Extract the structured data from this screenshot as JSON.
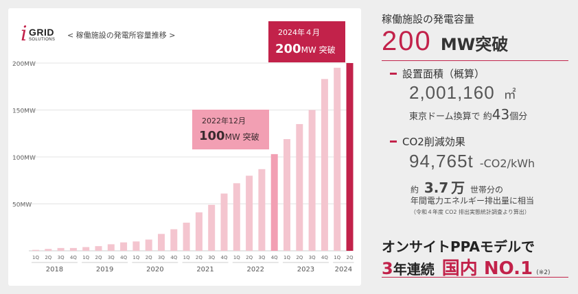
{
  "header": {
    "logo_i": "i",
    "logo_grid": "GRID",
    "logo_solutions": "SOLUTIONS",
    "chart_subtitle": "< 稼働施設の発電所容量推移 >"
  },
  "callouts": {
    "c2024_line1": "2024年４月",
    "c2024_value": "200",
    "c2024_suffix": "MW 突破",
    "c2022_line1": "2022年12月",
    "c2022_value": "100",
    "c2022_suffix": "MW 突破"
  },
  "chart_data": {
    "type": "bar",
    "title": "稼働施設の発電所容量推移",
    "ylabel": "MW",
    "ylim": [
      0,
      200
    ],
    "ytick_labels": [
      "50MW",
      "100MW",
      "150MW",
      "200MW"
    ],
    "yticks": [
      50,
      100,
      150,
      200
    ],
    "grid": true,
    "categories": [
      "1Q",
      "2Q",
      "3Q",
      "4Q",
      "1Q",
      "2Q",
      "3Q",
      "4Q",
      "1Q",
      "2Q",
      "3Q",
      "4Q",
      "1Q",
      "2Q",
      "3Q",
      "4Q",
      "1Q",
      "2Q",
      "3Q",
      "4Q",
      "1Q",
      "2Q",
      "3Q",
      "4Q",
      "1Q",
      "2Q"
    ],
    "years": [
      {
        "label": "2018",
        "quarters": 4
      },
      {
        "label": "2019",
        "quarters": 4
      },
      {
        "label": "2020",
        "quarters": 4
      },
      {
        "label": "2021",
        "quarters": 4
      },
      {
        "label": "2022",
        "quarters": 4
      },
      {
        "label": "2023",
        "quarters": 4
      },
      {
        "label": "2024",
        "quarters": 2
      }
    ],
    "values": [
      1,
      2,
      3,
      3,
      4,
      5,
      7,
      9,
      10,
      12,
      18,
      23,
      30,
      41,
      49,
      61,
      72,
      80,
      87,
      103,
      119,
      135,
      150,
      183,
      195,
      200
    ],
    "highlight_indices": [
      19,
      25
    ],
    "colors": {
      "normal": "#f4c5cf",
      "highlight_2022": "#f29fb3",
      "highlight_2024": "#c2224a"
    }
  },
  "side": {
    "title": "稼働施設の発電容量",
    "big_value": "200",
    "big_suffix": "MW突破",
    "area_label": "設置面積（概算）",
    "area_value": "2,001,160",
    "area_unit": "㎡",
    "dome_prefix": "東京ドーム換算で 約",
    "dome_num": "43",
    "dome_suffix": "個分",
    "co2_label": "CO2削減効果",
    "co2_value": "94,765t",
    "co2_unit": "-CO2/kWh",
    "household_prefix": "約",
    "household_num": "3.7",
    "household_man": "万",
    "household_suffix": "世帯分の",
    "household_line2": "年間電力エネルギー排出量に相当",
    "note": "（令和４年度 CO2 排出実態統計調査より算出）",
    "ppa_title": "オンサイトPPAモデルで",
    "ppa_num": "3",
    "ppa_mid": "年連続",
    "ppa_big": "国内 NO.1",
    "ppa_note": "(※2)"
  }
}
